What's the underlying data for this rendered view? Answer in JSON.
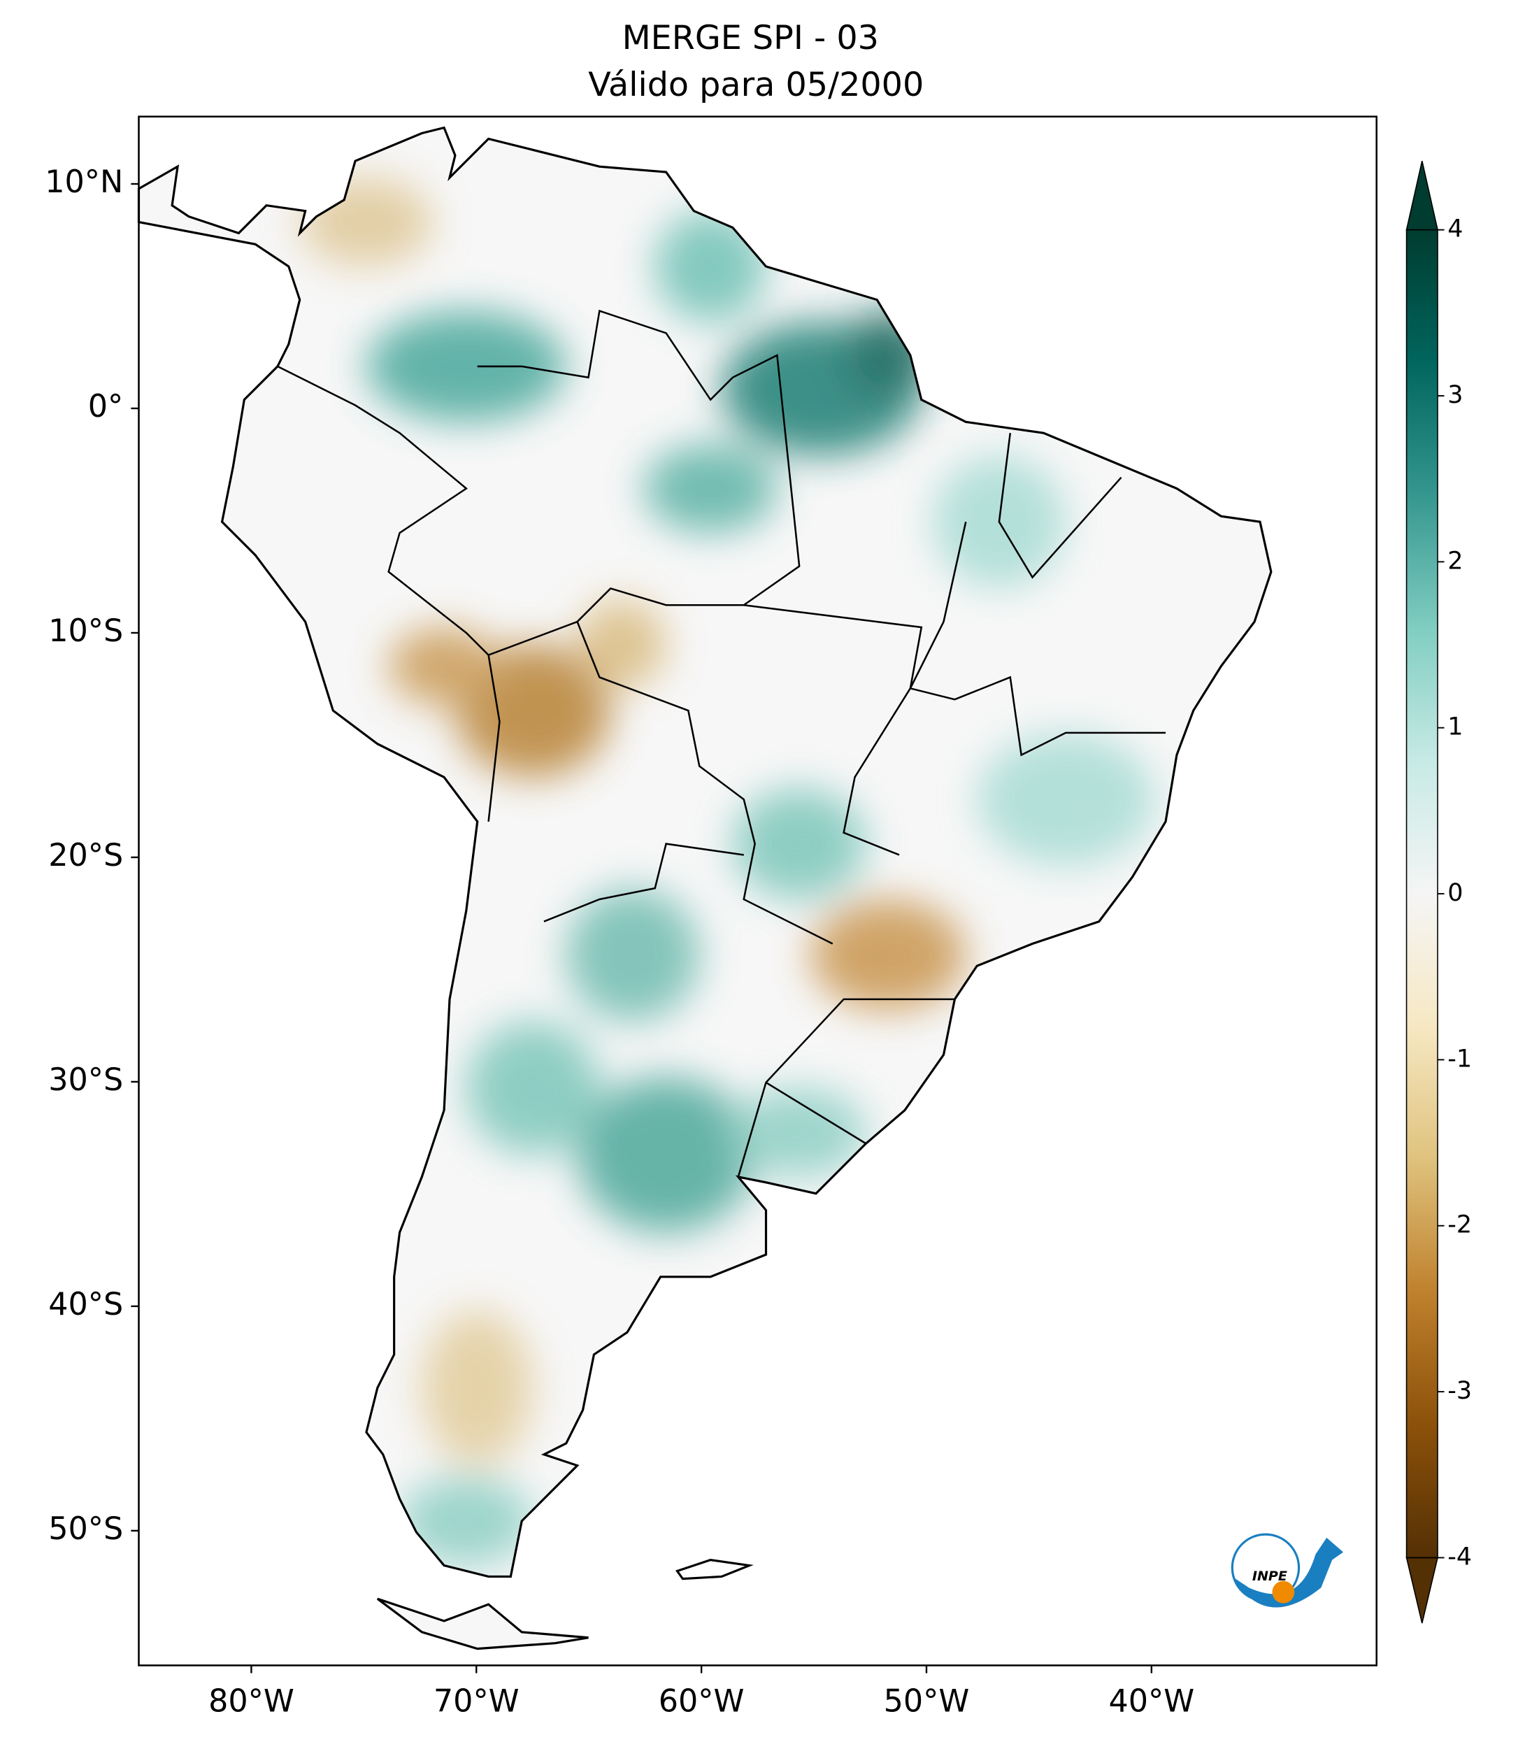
{
  "title": [
    "MERGE   SPI - 03",
    "Válido para 05/2000"
  ],
  "map": {
    "xlim": [
      -85,
      -30
    ],
    "ylim": [
      -56,
      13
    ],
    "xticks": [
      {
        "value": -80,
        "label": "80°W"
      },
      {
        "value": -70,
        "label": "70°W"
      },
      {
        "value": -60,
        "label": "60°W"
      },
      {
        "value": -50,
        "label": "50°W"
      },
      {
        "value": -40,
        "label": "40°W"
      }
    ],
    "yticks": [
      {
        "value": 10,
        "label": "10°N"
      },
      {
        "value": 0,
        "label": "0°"
      },
      {
        "value": -10,
        "label": "10°S"
      },
      {
        "value": -20,
        "label": "20°S"
      },
      {
        "value": -30,
        "label": "30°S"
      },
      {
        "value": -40,
        "label": "40°S"
      },
      {
        "value": -50,
        "label": "50°S"
      }
    ]
  },
  "colorbar": {
    "lim": [
      -4,
      4
    ],
    "ticks": [
      -4,
      -3,
      -2,
      -1,
      0,
      1,
      2,
      3,
      4
    ],
    "colors": [
      "#543005",
      "#8c510a",
      "#bf812d",
      "#dfc27d",
      "#f6e8c3",
      "#f5f5f5",
      "#c7eae5",
      "#80cdc1",
      "#35978f",
      "#01665e",
      "#003c30"
    ]
  },
  "logo": "INPE"
}
